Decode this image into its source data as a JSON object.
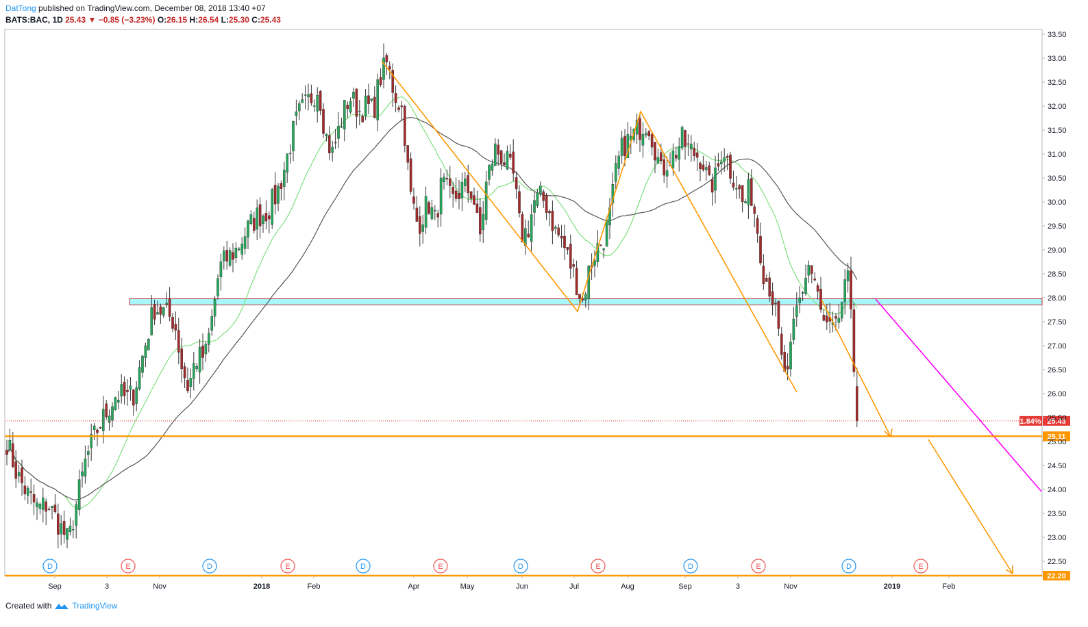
{
  "header": {
    "author": "DatTong",
    "published": "published on TradingView.com, December 08, 2018 13:40 +07"
  },
  "ohlc": {
    "symbol": "BATS:BAC, 1D",
    "last": "25.43",
    "change": "−0.85 (−3.23%)",
    "o_label": "O:",
    "o": "26.15",
    "h_label": "H:",
    "h": "26.54",
    "l_label": "L:",
    "l": "25.30",
    "c_label": "C:",
    "c": "25.43"
  },
  "footer": {
    "created": "Created with",
    "brand": "TradingView"
  },
  "colors": {
    "up": "#26a65b",
    "down": "#a12a2a",
    "ma_fast": "#7ee07e",
    "ma_slow": "#555555",
    "orange": "#ff9800",
    "magenta": "#ff00ff",
    "zone_fill": "#a7f7fb",
    "zone_border": "#c62828",
    "last_price": "#e53935"
  },
  "chart_data": {
    "type": "candlestick",
    "grid": false,
    "y_range": [
      22.2,
      33.6
    ],
    "y_ticks": [
      "33.50",
      "33.00",
      "32.50",
      "32.00",
      "31.50",
      "31.00",
      "30.50",
      "30.00",
      "29.50",
      "29.00",
      "28.50",
      "28.00",
      "27.50",
      "27.00",
      "26.50",
      "26.00",
      "25.50",
      "25.00",
      "24.50",
      "24.00",
      "23.50",
      "23.00",
      "22.50"
    ],
    "x_labels": [
      "Sep",
      "3",
      "Nov",
      "2018",
      "Feb",
      "Apr",
      "May",
      "Jun",
      "Jul",
      "Aug",
      "Sep",
      "3",
      "Nov",
      "2019",
      "Feb"
    ],
    "x_labels_bold": [
      "2018",
      "2019"
    ],
    "last_price": {
      "value": 25.43,
      "label": "25.43",
      "pct": "1.84%"
    },
    "support_level": {
      "value": 25.11,
      "label": "25.11"
    },
    "bottom_level": {
      "value": 22.2,
      "label": "22.20"
    },
    "zone": {
      "low": 27.85,
      "high": 27.98
    },
    "events": [
      "D",
      "E",
      "D",
      "E",
      "D",
      "E",
      "D",
      "E",
      "D",
      "E",
      "D",
      "E"
    ],
    "price_path": [
      [
        0,
        25.0
      ],
      [
        15,
        24.3
      ],
      [
        30,
        23.9
      ],
      [
        45,
        23.6
      ],
      [
        60,
        23.7
      ],
      [
        75,
        23.3
      ],
      [
        90,
        22.9
      ],
      [
        100,
        23.6
      ],
      [
        115,
        24.6
      ],
      [
        130,
        25.2
      ],
      [
        145,
        25.6
      ],
      [
        160,
        26.0
      ],
      [
        175,
        25.9
      ],
      [
        185,
        26.0
      ],
      [
        195,
        26.6
      ],
      [
        205,
        27.2
      ],
      [
        215,
        27.8
      ],
      [
        230,
        27.7
      ],
      [
        245,
        27.5
      ],
      [
        255,
        26.6
      ],
      [
        265,
        26.1
      ],
      [
        275,
        26.7
      ],
      [
        290,
        26.8
      ],
      [
        300,
        27.6
      ],
      [
        310,
        28.6
      ],
      [
        320,
        28.8
      ],
      [
        335,
        29.0
      ],
      [
        350,
        29.4
      ],
      [
        365,
        29.7
      ],
      [
        380,
        29.8
      ],
      [
        395,
        30.2
      ],
      [
        405,
        30.7
      ],
      [
        415,
        31.3
      ],
      [
        425,
        31.8
      ],
      [
        440,
        32.1
      ],
      [
        455,
        32.4
      ],
      [
        465,
        31.4
      ],
      [
        475,
        31.0
      ],
      [
        490,
        31.8
      ],
      [
        500,
        32.2
      ],
      [
        515,
        31.9
      ],
      [
        525,
        32.0
      ],
      [
        535,
        31.9
      ],
      [
        545,
        32.6
      ],
      [
        555,
        32.9
      ],
      [
        565,
        32.3
      ],
      [
        578,
        31.9
      ],
      [
        588,
        30.2
      ],
      [
        600,
        29.5
      ],
      [
        615,
        30.0
      ],
      [
        625,
        29.6
      ],
      [
        635,
        30.4
      ],
      [
        650,
        30.0
      ],
      [
        665,
        30.3
      ],
      [
        680,
        30.2
      ],
      [
        690,
        29.2
      ],
      [
        700,
        30.4
      ],
      [
        712,
        31.1
      ],
      [
        720,
        31.0
      ],
      [
        730,
        30.8
      ],
      [
        740,
        30.5
      ],
      [
        750,
        29.3
      ],
      [
        760,
        29.4
      ],
      [
        770,
        30.0
      ],
      [
        780,
        30.1
      ],
      [
        790,
        29.9
      ],
      [
        800,
        29.4
      ],
      [
        810,
        29.2
      ],
      [
        820,
        28.8
      ],
      [
        830,
        28.4
      ],
      [
        840,
        27.9
      ],
      [
        850,
        28.6
      ],
      [
        860,
        29.0
      ],
      [
        870,
        29.2
      ],
      [
        880,
        29.7
      ],
      [
        890,
        30.7
      ],
      [
        900,
        31.2
      ],
      [
        910,
        31.3
      ],
      [
        920,
        31.5
      ],
      [
        935,
        31.7
      ],
      [
        945,
        31.2
      ],
      [
        955,
        30.6
      ],
      [
        965,
        30.9
      ],
      [
        975,
        31.0
      ],
      [
        985,
        31.3
      ],
      [
        995,
        31.1
      ],
      [
        1005,
        31.0
      ],
      [
        1015,
        30.9
      ],
      [
        1025,
        30.3
      ],
      [
        1035,
        30.5
      ],
      [
        1045,
        31.2
      ],
      [
        1055,
        30.7
      ],
      [
        1065,
        30.4
      ],
      [
        1075,
        29.9
      ],
      [
        1085,
        30.3
      ],
      [
        1095,
        29.5
      ],
      [
        1105,
        28.5
      ],
      [
        1115,
        28.2
      ],
      [
        1125,
        27.4
      ],
      [
        1130,
        26.7
      ],
      [
        1140,
        26.3
      ],
      [
        1150,
        27.6
      ],
      [
        1160,
        28.1
      ],
      [
        1170,
        28.7
      ],
      [
        1180,
        28.3
      ],
      [
        1190,
        27.5
      ],
      [
        1200,
        27.3
      ],
      [
        1210,
        27.3
      ],
      [
        1220,
        28.0
      ],
      [
        1230,
        28.4
      ],
      [
        1235,
        27.0
      ],
      [
        1242,
        25.43
      ]
    ]
  }
}
